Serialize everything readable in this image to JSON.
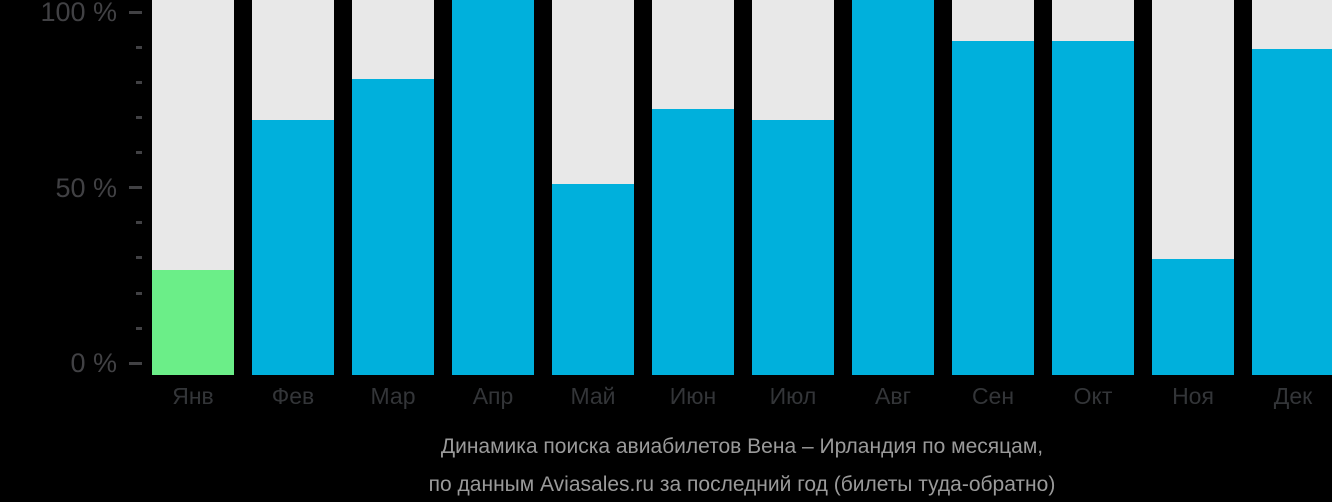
{
  "page": {
    "background": "#000000"
  },
  "chart_data": {
    "type": "bar",
    "title_lines": [
      "Динамика поиска авиабилетов Вена – Ирландия по месяцам,",
      "по данным Aviasales.ru за последний год (билеты туда-обратно)"
    ],
    "categories": [
      "Янв",
      "Фев",
      "Мар",
      "Апр",
      "Май",
      "Июн",
      "Июл",
      "Авг",
      "Сен",
      "Окт",
      "Ноя",
      "Дек"
    ],
    "values": [
      28,
      68,
      79,
      100,
      51,
      71,
      68,
      100,
      89,
      89,
      31,
      87
    ],
    "unit": "%",
    "ylim": [
      0,
      100
    ],
    "highlight_index": 0,
    "y_axis": {
      "minor_tick_step": 10,
      "major_ticks": [
        {
          "value": 100,
          "label": "100 %"
        },
        {
          "value": 50,
          "label": "50 %"
        },
        {
          "value": 0,
          "label": "0 %"
        }
      ]
    },
    "legend": null,
    "grid": false,
    "colors": {
      "bar": "#00b0dc",
      "highlight": "#6bee88",
      "track": "#e8e8e8",
      "axis_text": "#414144",
      "month_text": "#333538",
      "caption_text": "#9a9a9a"
    }
  }
}
